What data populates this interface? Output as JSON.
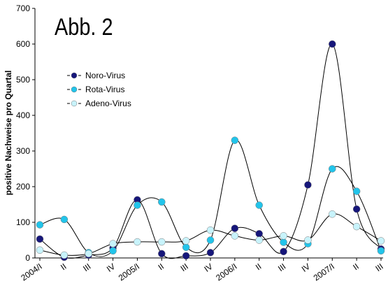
{
  "chart_data": {
    "type": "line",
    "title": "Abb. 2",
    "y_label": "positive Nachweise pro Quartal",
    "categories": [
      "2004/I",
      "II",
      "III",
      "IV",
      "2005/I",
      "II",
      "III",
      "IV",
      "2006/I",
      "II",
      "III",
      "IV",
      "2007/I",
      "II",
      "III"
    ],
    "series": [
      {
        "name": "Noro-Virus",
        "color": "#16167a",
        "values": [
          53,
          2,
          8,
          28,
          163,
          12,
          6,
          15,
          83,
          68,
          18,
          205,
          600,
          137,
          25
        ]
      },
      {
        "name": "Rota-Virus",
        "color": "#22c4ea",
        "values": [
          93,
          108,
          15,
          20,
          148,
          157,
          30,
          50,
          330,
          148,
          44,
          40,
          250,
          187,
          20
        ]
      },
      {
        "name": "Adeno-Virus",
        "color": "#c8f3fb",
        "values": [
          22,
          8,
          12,
          40,
          45,
          45,
          48,
          78,
          62,
          50,
          62,
          50,
          123,
          88,
          48
        ]
      }
    ],
    "ylim": [
      0,
      700
    ],
    "yticks": [
      0,
      100,
      200,
      300,
      400,
      500,
      600,
      700
    ],
    "legend": "upper-left"
  }
}
